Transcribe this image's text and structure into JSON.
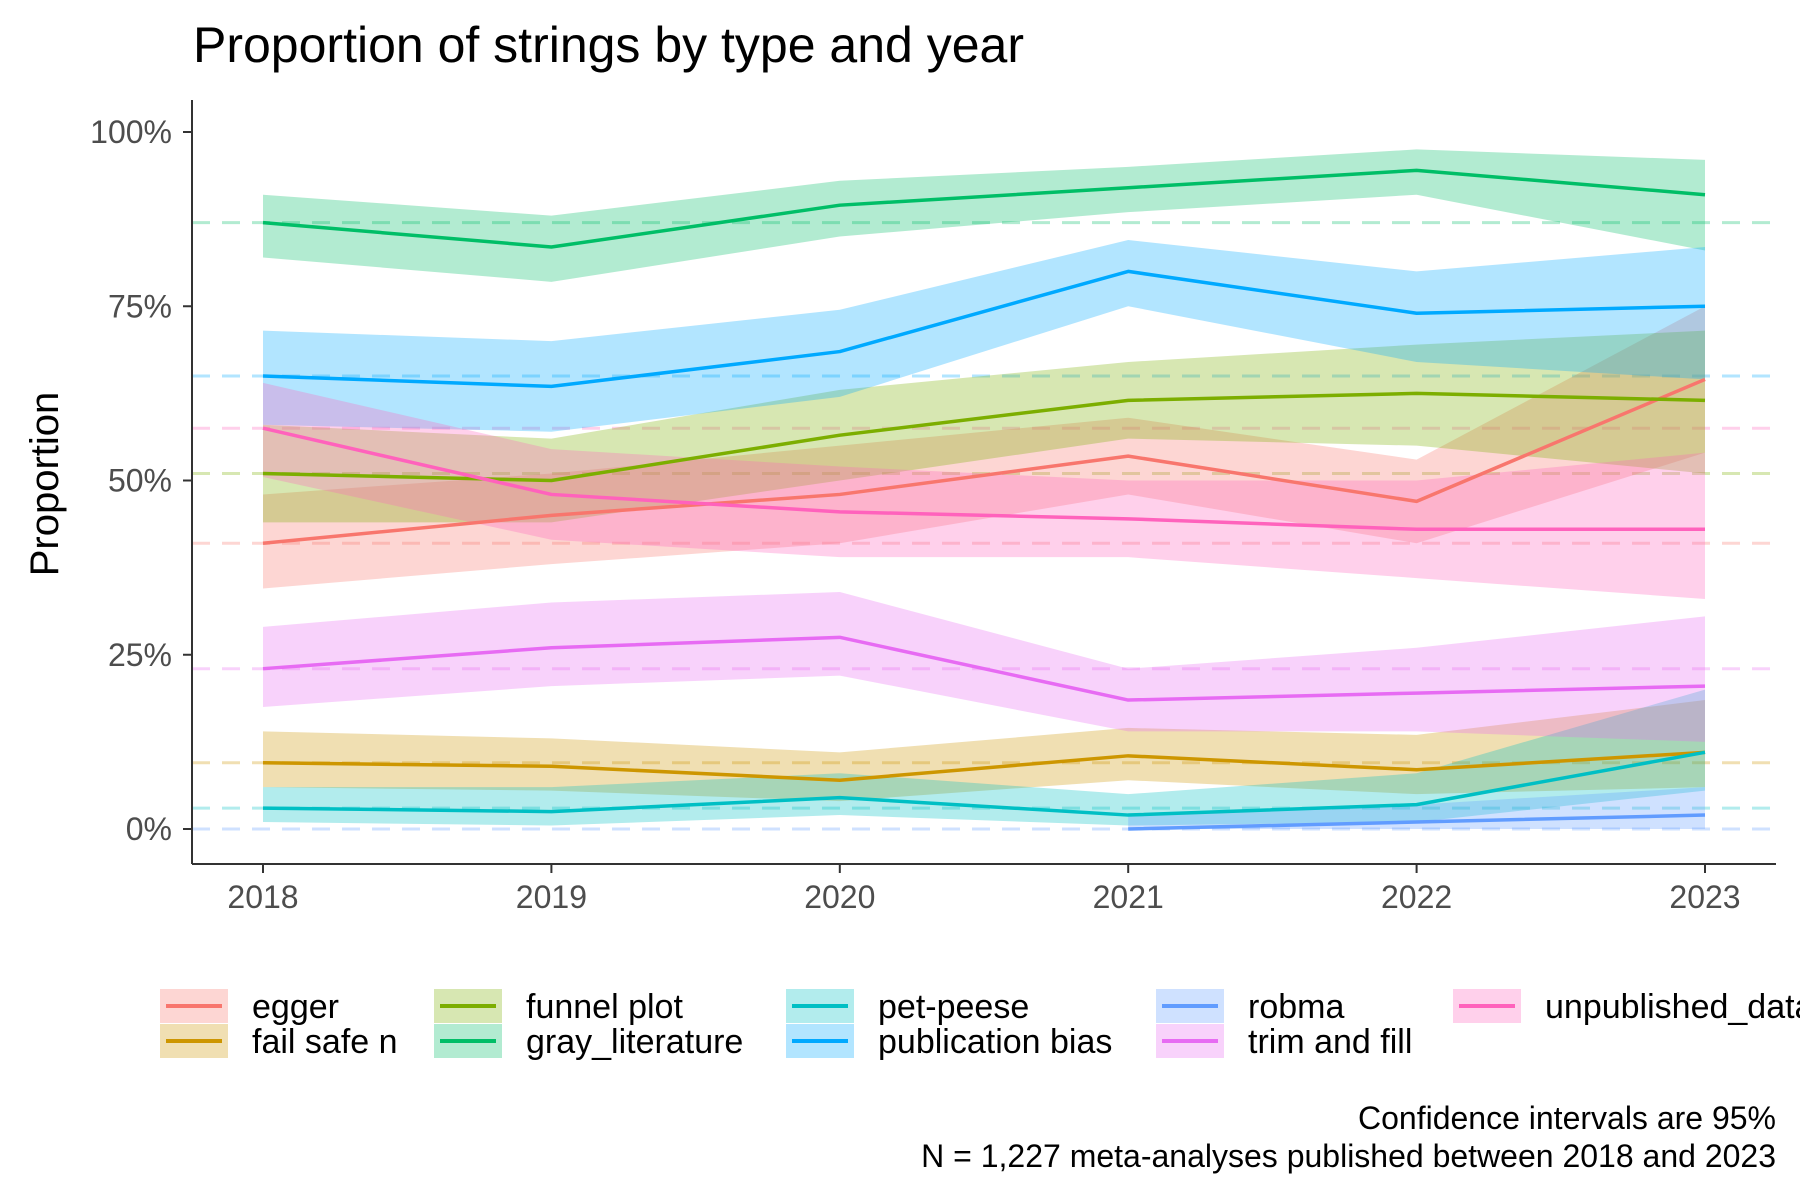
{
  "chart_data": {
    "type": "line",
    "title": "Proportion of strings by type and year",
    "xlabel": "",
    "ylabel": "Proportion",
    "x": [
      2018,
      2019,
      2020,
      2021,
      2022,
      2023
    ],
    "x_tick_labels": [
      "2018",
      "2019",
      "2020",
      "2021",
      "2022",
      "2023"
    ],
    "y_ticks": [
      0,
      0.25,
      0.5,
      0.75,
      1.0
    ],
    "y_tick_labels": [
      "0%",
      "25%",
      "50%",
      "75%",
      "100%"
    ],
    "ylim": [
      -0.05,
      1.06
    ],
    "grid": false,
    "legend_position": "bottom",
    "caption_lines": [
      "Confidence intervals are 95%",
      "N = 1,227 meta-analyses published between 2018 and 2023"
    ],
    "series": [
      {
        "name": "egger",
        "color": "#F8766D",
        "values": [
          0.41,
          0.45,
          0.48,
          0.535,
          0.47,
          0.645
        ],
        "lower": [
          0.345,
          0.38,
          0.41,
          0.48,
          0.41,
          0.54
        ],
        "upper": [
          0.48,
          0.51,
          0.55,
          0.59,
          0.53,
          0.75
        ],
        "overall": 0.41
      },
      {
        "name": "fail safe n",
        "color": "#CD9600",
        "values": [
          0.095,
          0.09,
          0.07,
          0.105,
          0.085,
          0.11
        ],
        "lower": [
          0.06,
          0.055,
          0.04,
          0.07,
          0.05,
          0.06
        ],
        "upper": [
          0.14,
          0.13,
          0.11,
          0.145,
          0.135,
          0.185
        ],
        "overall": 0.095
      },
      {
        "name": "funnel plot",
        "color": "#7CAE00",
        "values": [
          0.51,
          0.5,
          0.565,
          0.615,
          0.625,
          0.615
        ],
        "lower": [
          0.44,
          0.44,
          0.5,
          0.56,
          0.55,
          0.51
        ],
        "upper": [
          0.58,
          0.56,
          0.63,
          0.67,
          0.695,
          0.715
        ],
        "overall": 0.51
      },
      {
        "name": "gray_literature",
        "color": "#00BE67",
        "values": [
          0.87,
          0.835,
          0.895,
          0.92,
          0.945,
          0.91
        ],
        "lower": [
          0.82,
          0.785,
          0.85,
          0.885,
          0.91,
          0.83
        ],
        "upper": [
          0.91,
          0.88,
          0.93,
          0.95,
          0.975,
          0.96
        ],
        "overall": 0.87
      },
      {
        "name": "pet-peese",
        "color": "#00BFC4",
        "values": [
          0.03,
          0.025,
          0.045,
          0.02,
          0.035,
          0.11
        ],
        "lower": [
          0.01,
          0.005,
          0.02,
          0.005,
          0.01,
          0.055
        ],
        "upper": [
          0.06,
          0.06,
          0.08,
          0.05,
          0.08,
          0.2
        ],
        "overall": 0.03
      },
      {
        "name": "publication bias",
        "color": "#00A9FF",
        "values": [
          0.65,
          0.635,
          0.685,
          0.8,
          0.74,
          0.75
        ],
        "lower": [
          0.58,
          0.57,
          0.62,
          0.75,
          0.67,
          0.645
        ],
        "upper": [
          0.715,
          0.7,
          0.745,
          0.845,
          0.8,
          0.835
        ],
        "overall": 0.65
      },
      {
        "name": "robma",
        "color": "#619CFF",
        "values": [
          null,
          null,
          null,
          0.0,
          0.01,
          0.02
        ],
        "lower": [
          null,
          null,
          null,
          0.0,
          0.0,
          0.0
        ],
        "upper": [
          null,
          null,
          null,
          0.02,
          0.035,
          0.06
        ],
        "overall": 0.0
      },
      {
        "name": "trim and fill",
        "color": "#E76BF3",
        "values": [
          0.23,
          0.26,
          0.275,
          0.185,
          0.195,
          0.205
        ],
        "lower": [
          0.175,
          0.205,
          0.22,
          0.14,
          0.14,
          0.125
        ],
        "upper": [
          0.29,
          0.325,
          0.34,
          0.23,
          0.26,
          0.305
        ],
        "overall": 0.23
      },
      {
        "name": "unpublished_data",
        "color": "#FF62BC",
        "values": [
          0.575,
          0.48,
          0.455,
          0.445,
          0.43,
          0.43
        ],
        "lower": [
          0.505,
          0.415,
          0.39,
          0.39,
          0.36,
          0.33
        ],
        "upper": [
          0.64,
          0.545,
          0.52,
          0.5,
          0.5,
          0.54
        ],
        "overall": 0.575
      }
    ]
  }
}
